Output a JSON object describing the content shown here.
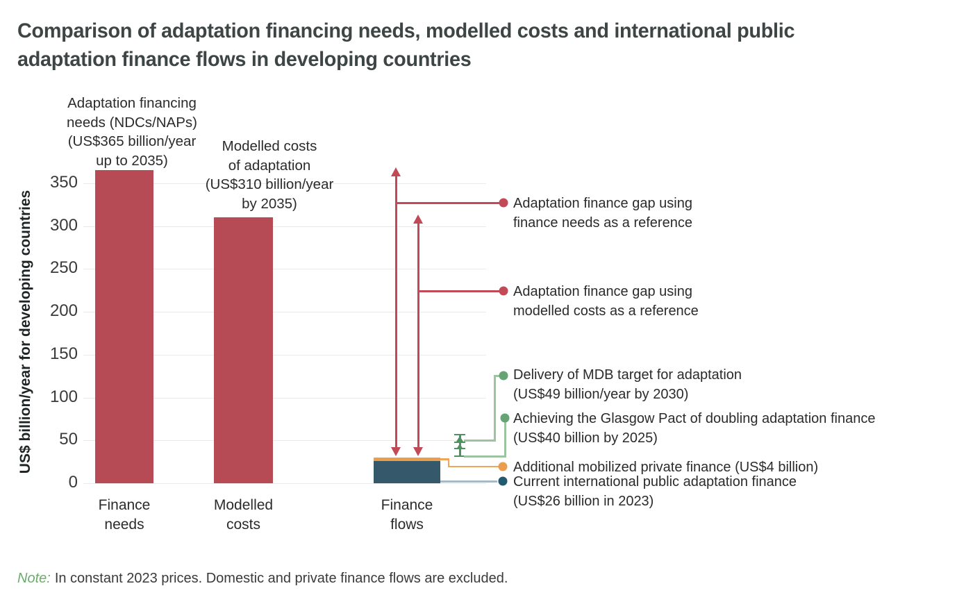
{
  "title_lines": [
    "Comparison of adaptation financing needs, modelled costs and international public",
    "adaptation finance flows in developing countries"
  ],
  "note": {
    "prefix": "Note:",
    "body": "In constant 2023 prices. Domestic and private finance flows are excluded."
  },
  "colors": {
    "red_bar": "#b64a55",
    "red_line": "#c24a57",
    "teal_bar": "#35596b",
    "orange": "#eb9d4e",
    "orange_line": "#efa658",
    "green_dot": "#66a476",
    "green_line": "#9cc4a0",
    "green_marker": "#4f9160",
    "steel_line": "#a5bac4",
    "steel_dot": "#235a70",
    "grid": "#eceae8",
    "note_green": "#6cab6c"
  },
  "chart_data": {
    "type": "bar",
    "title": "Comparison of adaptation financing needs, modelled costs and international public adaptation finance flows in developing countries",
    "ylabel": "US$ billion/year for developing countries",
    "ylim": [
      0,
      380
    ],
    "yticks": [
      0,
      50,
      100,
      150,
      200,
      250,
      300,
      350
    ],
    "grid": true,
    "legend_position": "right-callouts",
    "categories": [
      "Finance needs",
      "Modelled costs",
      "Finance flows"
    ],
    "bars": [
      {
        "category": "Finance needs",
        "category_lines": [
          "Finance",
          "needs"
        ],
        "value": 365,
        "color_key": "red_bar",
        "annotation": "Adaptation financing needs (NDCs/NAPs) (US$365 billion/year up to 2035)",
        "annotation_lines": [
          "Adaptation financing",
          "needs (NDCs/NAPs)",
          "(US$365 billion/year",
          "up to 2035)"
        ]
      },
      {
        "category": "Modelled costs",
        "category_lines": [
          "Modelled",
          "costs"
        ],
        "value": 310,
        "color_key": "red_bar",
        "annotation": "Modelled costs of adaptation (US$310 billion/year by 2035)",
        "annotation_lines": [
          "Modelled costs",
          "of adaptation",
          "(US$310 billion/year",
          "by 2035)"
        ]
      },
      {
        "category": "Finance flows",
        "category_lines": [
          "Finance",
          "flows"
        ],
        "value": 30,
        "stacked": true,
        "segments": [
          {
            "name": "Current international public adaptation finance",
            "value": 26,
            "color_key": "teal_bar"
          },
          {
            "name": "Additional mobilized private finance",
            "value": 4,
            "color_key": "orange"
          }
        ]
      }
    ],
    "gap_arrows": [
      {
        "from": 30,
        "to": 365,
        "callout": "gap-needs"
      },
      {
        "from": 30,
        "to": 310,
        "callout": "gap-costs"
      }
    ],
    "callouts": [
      {
        "id": "gap-needs",
        "color_key": "red_line",
        "label": "Adaptation finance gap using finance needs as a reference",
        "label_lines": [
          "Adaptation finance gap using",
          "finance needs as a reference"
        ]
      },
      {
        "id": "gap-costs",
        "color_key": "red_line",
        "label": "Adaptation finance gap using modelled costs as a reference",
        "label_lines": [
          "Adaptation finance gap using",
          "modelled costs as a reference"
        ]
      },
      {
        "id": "mdb-target",
        "color_key": "green_dot",
        "value": 49,
        "label": "Delivery of MDB target for adaptation (US$49 billion/year by 2030)",
        "label_lines": [
          "Delivery of MDB target for adaptation",
          "(US$49 billion/year by 2030)"
        ]
      },
      {
        "id": "glasgow-pact",
        "color_key": "green_dot",
        "value": 40,
        "label": "Achieving the Glasgow Pact of doubling adaptation finance (US$40 billion by 2025)",
        "label_lines": [
          "Achieving the Glasgow Pact of doubling adaptation finance",
          "(US$40 billion by 2025)"
        ]
      },
      {
        "id": "private-finance",
        "color_key": "orange",
        "value": 4,
        "label": "Additional mobilized private finance (US$4 billion)",
        "label_lines": [
          "Additional mobilized private finance (US$4 billion)"
        ]
      },
      {
        "id": "current-finance",
        "color_key": "steel_dot",
        "value": 26,
        "label": "Current international public adaptation finance (US$26 billion in 2023)",
        "label_lines": [
          "Current international public adaptation finance",
          "(US$26 billion in 2023)"
        ]
      }
    ]
  }
}
